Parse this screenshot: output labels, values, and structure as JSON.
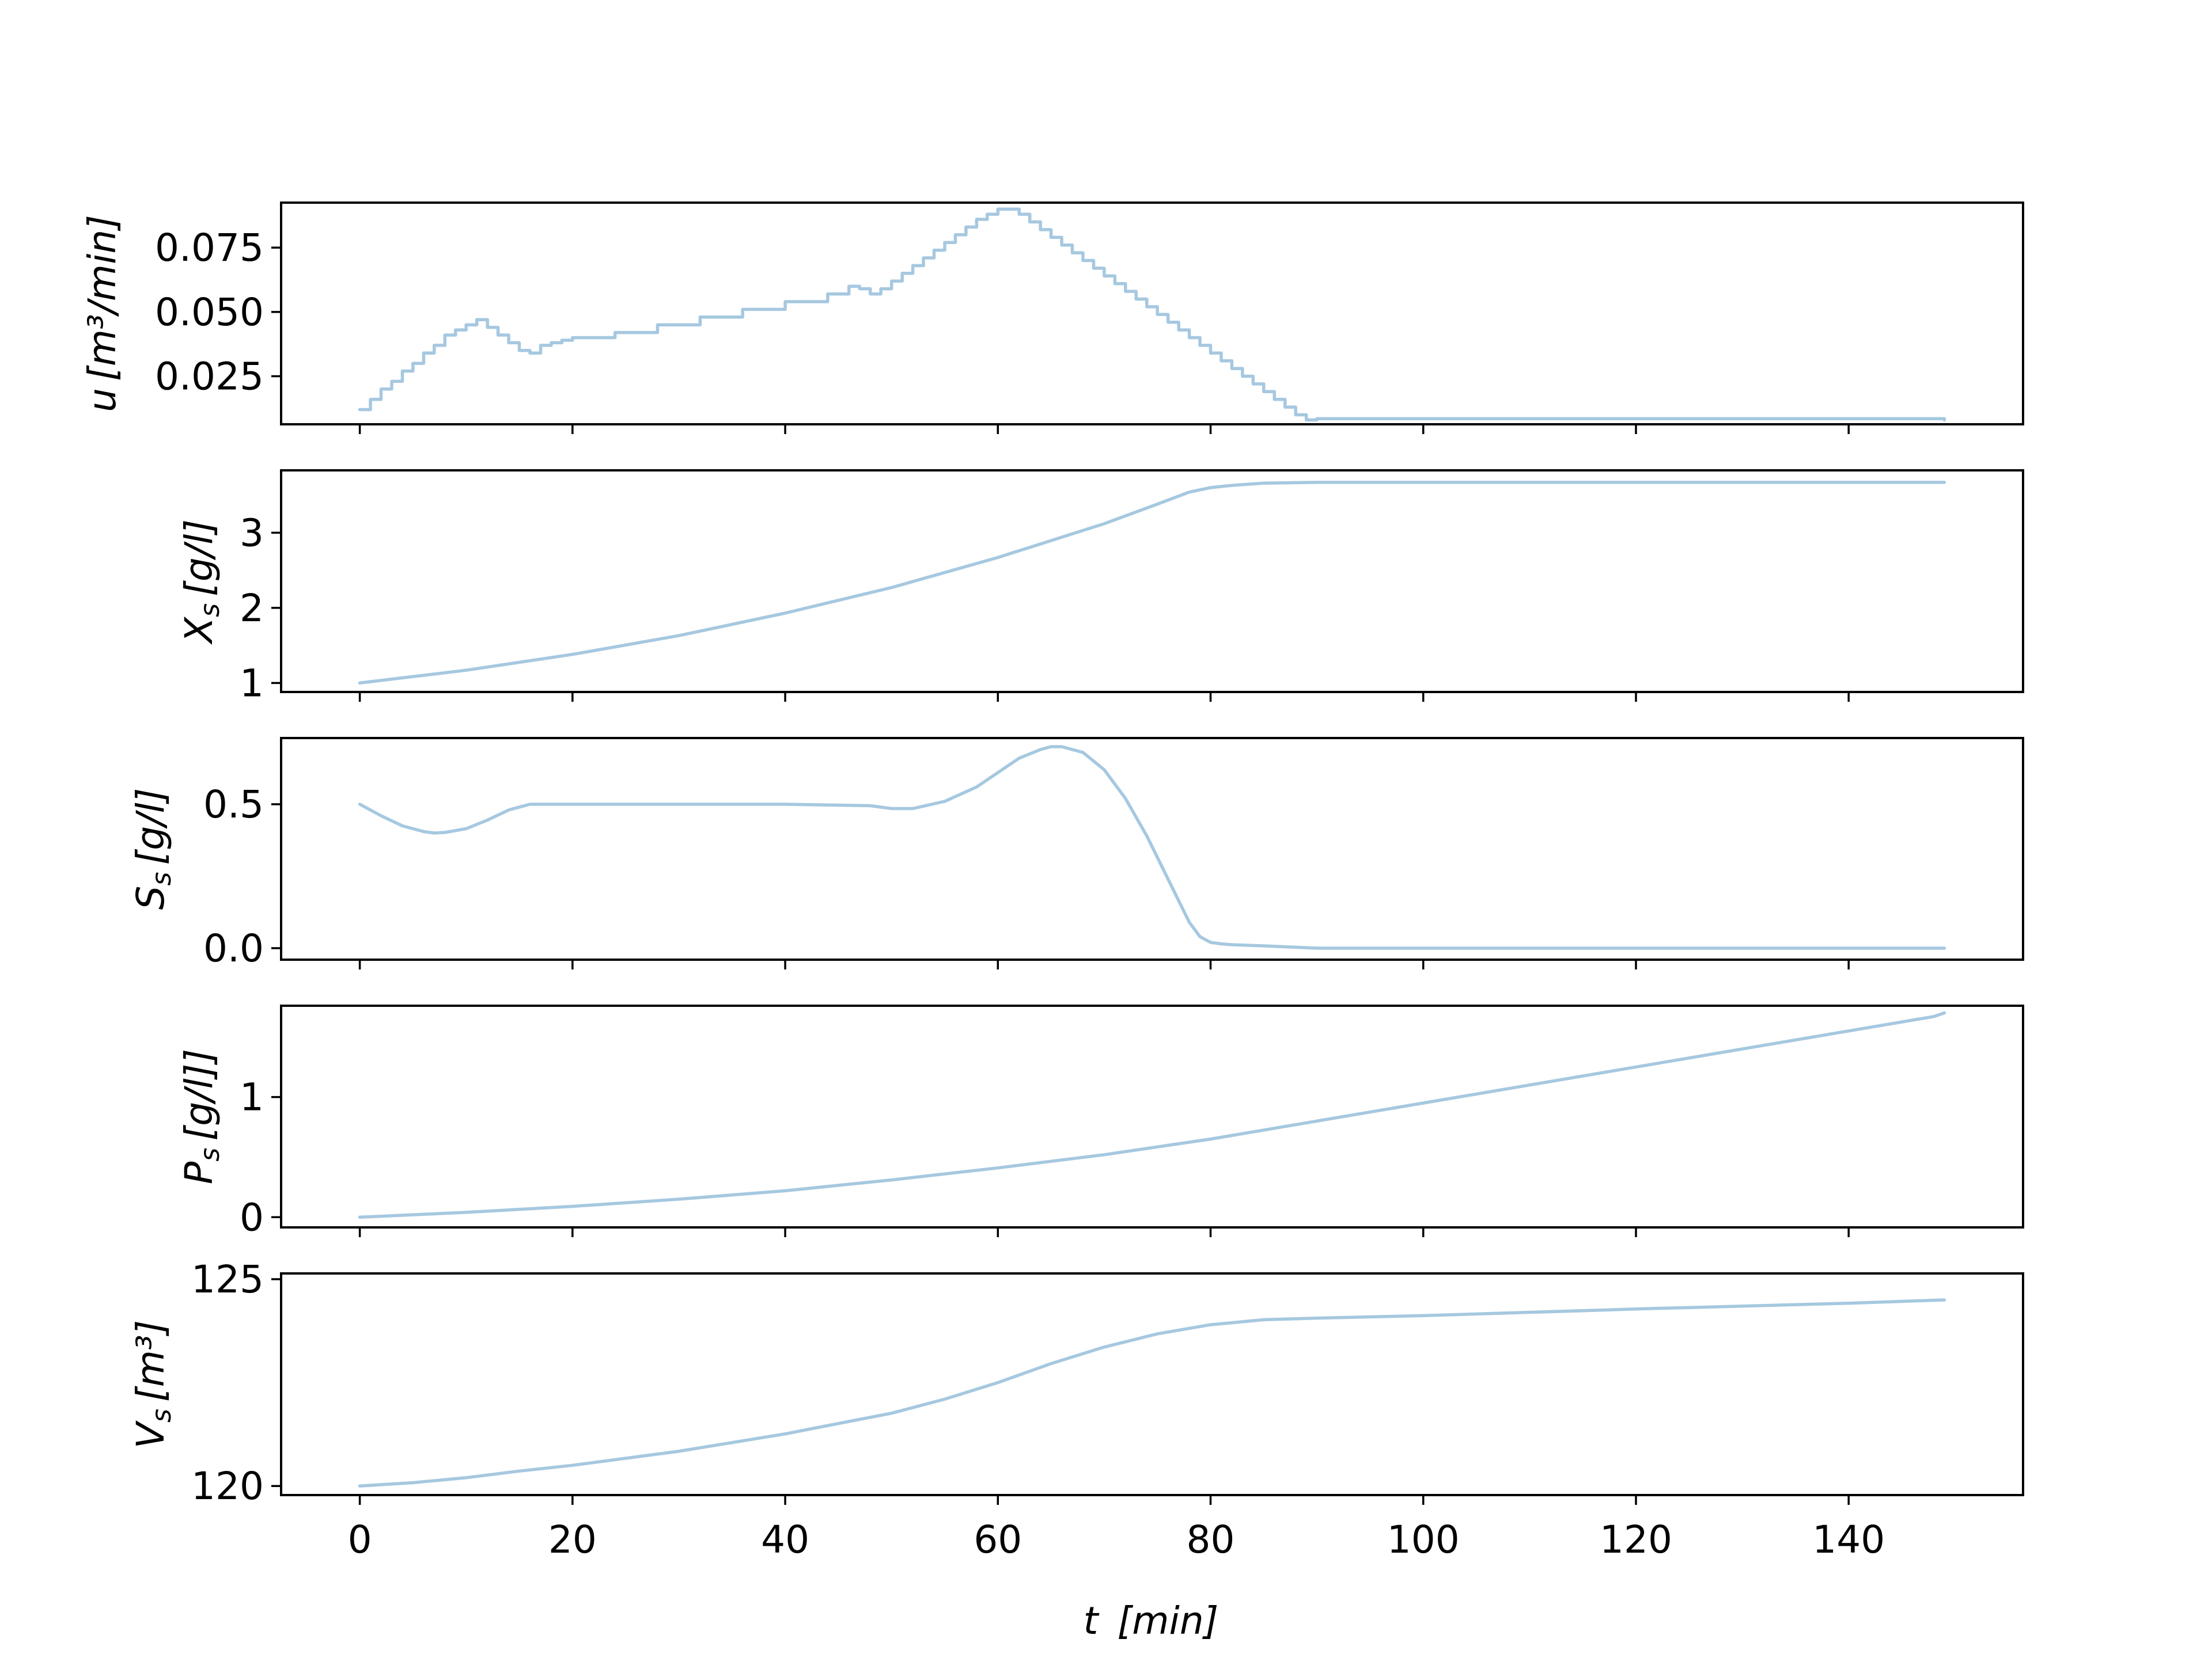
{
  "chart_data": {
    "type": "line",
    "shared_x": {
      "label_var": "t",
      "label_unit": "[min]",
      "xlim": [
        -7.4,
        156.4
      ],
      "ticks": [
        0,
        20,
        40,
        60,
        80,
        100,
        120,
        140
      ],
      "tick_labels": [
        "0",
        "20",
        "40",
        "60",
        "80",
        "100",
        "120",
        "140"
      ]
    },
    "line_color": "#a6c8e0",
    "panels": [
      {
        "id": "u",
        "ylabel_var": "u",
        "ylabel_sub": "",
        "ylabel_unit": "[m³/min]",
        "ylim": [
          0.0063,
          0.0925
        ],
        "yticks": [
          0.025,
          0.05,
          0.075
        ],
        "ytick_labels": [
          "0.025",
          "0.050",
          "0.075"
        ],
        "step": true,
        "x": [
          0,
          1,
          2,
          3,
          4,
          5,
          6,
          7,
          8,
          9,
          10,
          11,
          12,
          13,
          14,
          15,
          16,
          17,
          18,
          19,
          20,
          24,
          28,
          32,
          36,
          40,
          44,
          46,
          47,
          48,
          49,
          50,
          51,
          52,
          53,
          54,
          55,
          56,
          57,
          58,
          59,
          60,
          61,
          62,
          63,
          64,
          65,
          66,
          67,
          68,
          69,
          70,
          71,
          72,
          73,
          74,
          75,
          76,
          77,
          78,
          79,
          80,
          81,
          82,
          83,
          84,
          85,
          86,
          87,
          88,
          89,
          90,
          138,
          149
        ],
        "y": [
          0.012,
          0.016,
          0.02,
          0.023,
          0.027,
          0.03,
          0.034,
          0.037,
          0.041,
          0.043,
          0.045,
          0.047,
          0.044,
          0.041,
          0.038,
          0.035,
          0.034,
          0.037,
          0.038,
          0.039,
          0.04,
          0.042,
          0.045,
          0.048,
          0.051,
          0.054,
          0.057,
          0.06,
          0.059,
          0.057,
          0.059,
          0.062,
          0.065,
          0.068,
          0.071,
          0.074,
          0.077,
          0.08,
          0.083,
          0.086,
          0.088,
          0.09,
          0.09,
          0.088,
          0.085,
          0.082,
          0.079,
          0.076,
          0.073,
          0.07,
          0.067,
          0.064,
          0.061,
          0.058,
          0.055,
          0.052,
          0.049,
          0.046,
          0.043,
          0.04,
          0.037,
          0.034,
          0.031,
          0.028,
          0.025,
          0.022,
          0.019,
          0.016,
          0.013,
          0.01,
          0.008,
          0.0085,
          0.0085,
          0.008
        ]
      },
      {
        "id": "X",
        "ylabel_var": "X",
        "ylabel_sub": "s",
        "ylabel_unit": "[g/l]",
        "ylim": [
          0.88,
          3.83
        ],
        "yticks": [
          1,
          2,
          3
        ],
        "ytick_labels": [
          "1",
          "2",
          "3"
        ],
        "step": false,
        "x": [
          0,
          10,
          20,
          30,
          40,
          50,
          60,
          70,
          75,
          78,
          80,
          82,
          85,
          90,
          100,
          149
        ],
        "y": [
          1.0,
          1.17,
          1.38,
          1.63,
          1.93,
          2.27,
          2.67,
          3.12,
          3.38,
          3.54,
          3.6,
          3.63,
          3.66,
          3.67,
          3.67,
          3.67
        ]
      },
      {
        "id": "S",
        "ylabel_var": "S",
        "ylabel_sub": "s",
        "ylabel_unit": "[g/l]",
        "ylim": [
          -0.04,
          0.73
        ],
        "yticks": [
          0.0,
          0.5
        ],
        "ytick_labels": [
          "0.0",
          "0.5"
        ],
        "step": false,
        "x": [
          0,
          2,
          4,
          6,
          7,
          8,
          10,
          12,
          14,
          16,
          18,
          20,
          30,
          40,
          48,
          50,
          52,
          55,
          58,
          60,
          62,
          64,
          65,
          66,
          68,
          70,
          72,
          74,
          76,
          78,
          79,
          80,
          81,
          82,
          85,
          90,
          149
        ],
        "y": [
          0.5,
          0.46,
          0.425,
          0.405,
          0.4,
          0.402,
          0.415,
          0.445,
          0.48,
          0.5,
          0.5,
          0.5,
          0.5,
          0.5,
          0.495,
          0.485,
          0.485,
          0.51,
          0.56,
          0.61,
          0.66,
          0.69,
          0.7,
          0.7,
          0.68,
          0.62,
          0.52,
          0.39,
          0.24,
          0.09,
          0.04,
          0.02,
          0.015,
          0.012,
          0.008,
          0.0,
          0.0
        ]
      },
      {
        "id": "P",
        "ylabel_var": "P",
        "ylabel_sub": "s",
        "ylabel_unit": "[g/l]]",
        "ylim": [
          -0.085,
          1.76
        ],
        "yticks": [
          0,
          1
        ],
        "ytick_labels": [
          "0",
          "1"
        ],
        "step": false,
        "x": [
          0,
          10,
          20,
          30,
          40,
          50,
          60,
          70,
          80,
          90,
          100,
          110,
          120,
          130,
          140,
          148,
          149
        ],
        "y": [
          0.0,
          0.04,
          0.09,
          0.15,
          0.22,
          0.31,
          0.41,
          0.52,
          0.65,
          0.8,
          0.95,
          1.1,
          1.25,
          1.4,
          1.55,
          1.67,
          1.7
        ]
      },
      {
        "id": "V",
        "ylabel_var": "V",
        "ylabel_sub": "s",
        "ylabel_unit": "[m³]",
        "ylim": [
          119.78,
          125.14
        ],
        "yticks": [
          120,
          125
        ],
        "ytick_labels": [
          "120",
          "125"
        ],
        "step": false,
        "x": [
          0,
          5,
          10,
          15,
          20,
          30,
          40,
          50,
          55,
          60,
          65,
          70,
          75,
          80,
          85,
          90,
          100,
          120,
          140,
          149
        ],
        "y": [
          120.0,
          120.08,
          120.2,
          120.36,
          120.5,
          120.84,
          121.26,
          121.76,
          122.1,
          122.5,
          122.96,
          123.36,
          123.68,
          123.9,
          124.02,
          124.06,
          124.12,
          124.28,
          124.42,
          124.5
        ]
      }
    ]
  }
}
